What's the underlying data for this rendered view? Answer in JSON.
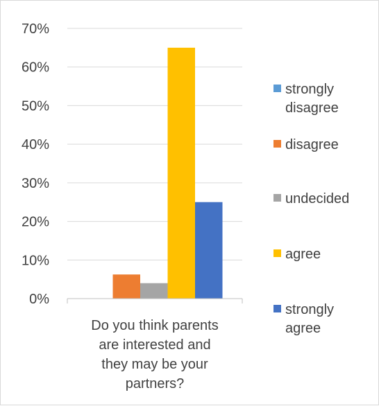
{
  "chart_data": {
    "type": "bar",
    "categories": [
      "Do you think parents are interested and they may be your partners?"
    ],
    "category_label_lines": [
      "Do you think parents",
      "are interested and",
      "they may be your",
      "partners?"
    ],
    "series": [
      {
        "name": "strongly disagree",
        "values": [
          0
        ],
        "color": "#5b9bd5",
        "legend_lines": [
          "strongly",
          "disagree"
        ]
      },
      {
        "name": "disagree",
        "values": [
          6.25
        ],
        "color": "#ed7d31",
        "legend_lines": [
          "disagree"
        ]
      },
      {
        "name": "undecided",
        "values": [
          4
        ],
        "color": "#a5a5a5",
        "legend_lines": [
          "undecided"
        ]
      },
      {
        "name": "agree",
        "values": [
          65
        ],
        "color": "#ffc000",
        "legend_lines": [
          "agree"
        ]
      },
      {
        "name": "strongly agree",
        "values": [
          25
        ],
        "color": "#4472c4",
        "legend_lines": [
          "strongly",
          "agree"
        ]
      }
    ],
    "ylim": [
      0,
      70
    ],
    "yticks": [
      0,
      10,
      20,
      30,
      40,
      50,
      60,
      70
    ],
    "ytick_labels": [
      "0%",
      "10%",
      "20%",
      "30%",
      "40%",
      "50%",
      "60%",
      "70%"
    ],
    "grid": true,
    "legend_position": "right",
    "title": "",
    "xlabel": "",
    "ylabel": ""
  }
}
